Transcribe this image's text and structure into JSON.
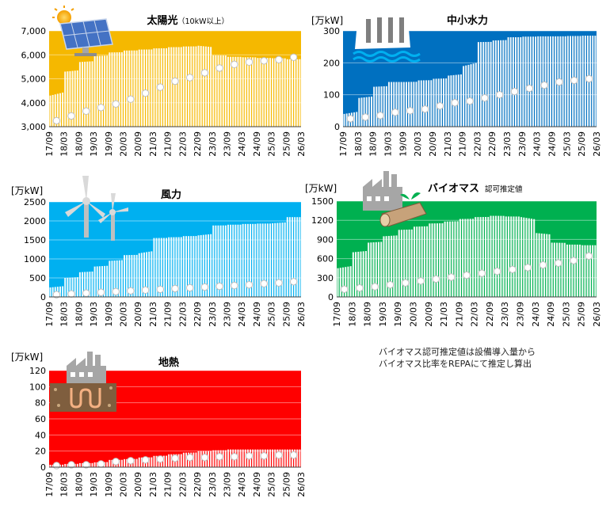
{
  "months": [
    "17/09",
    "18/03",
    "18/09",
    "19/03",
    "19/09",
    "20/03",
    "20/09",
    "21/03",
    "21/09",
    "22/03",
    "22/09",
    "23/03",
    "23/09",
    "24/03",
    "24/09",
    "25/03",
    "25/09",
    "26/03"
  ],
  "notes": [
    "バイオマス認可推定値は設備導入量から",
    "バイオマス比率をREPAにて推定し算出"
  ],
  "chart_data": [
    {
      "id": "solar",
      "type": "bar",
      "title": "太陽光",
      "title_suffix": "（10kW以上）",
      "unit": "",
      "bg_color": "#f5b800",
      "ylim": [
        3000,
        7000
      ],
      "yticks": [
        3000,
        4000,
        5000,
        6000,
        7000
      ],
      "ytick_labels": [
        "3,000",
        "4,000",
        "5,000",
        "6,000",
        "7,000"
      ],
      "x_start": 0,
      "x_end": 17,
      "series": [
        {
          "kind": "bars",
          "x": [
            0,
            1,
            2,
            3,
            4,
            5,
            6,
            7,
            8,
            9,
            10,
            11,
            12,
            13,
            14,
            15,
            16
          ],
          "values": [
            4300,
            5300,
            5700,
            5950,
            6100,
            6180,
            6220,
            6270,
            6320,
            6350,
            6380,
            5980,
            5920,
            5900,
            5870,
            5860,
            5820
          ]
        },
        {
          "kind": "dots",
          "x": [
            0,
            1,
            2,
            3,
            4,
            5,
            6,
            7,
            8,
            9,
            10,
            11,
            12,
            13,
            14,
            15,
            16
          ],
          "values": [
            3250,
            3450,
            3650,
            3800,
            3950,
            4150,
            4400,
            4650,
            4900,
            5050,
            5250,
            5450,
            5600,
            5700,
            5750,
            5800,
            5900
          ]
        }
      ]
    },
    {
      "id": "hydro",
      "type": "bar",
      "title": "中小水力",
      "title_suffix": "",
      "unit": "[万kW]",
      "bg_color": "#0070c0",
      "ylim": [
        0,
        300
      ],
      "yticks": [
        0,
        100,
        200,
        300
      ],
      "ytick_labels": [
        "0",
        "100",
        "200",
        "300"
      ],
      "x_start": 0,
      "x_end": 17,
      "series": [
        {
          "kind": "bars",
          "x": [
            0,
            1,
            2,
            3,
            4,
            5,
            6,
            7,
            8,
            9,
            10,
            11,
            12,
            13,
            14,
            15,
            16
          ],
          "values": [
            40,
            90,
            125,
            140,
            140,
            145,
            150,
            160,
            190,
            265,
            270,
            280,
            282,
            283,
            283,
            284,
            285
          ]
        },
        {
          "kind": "dots",
          "x": [
            0,
            1,
            2,
            3,
            4,
            5,
            6,
            7,
            8,
            9,
            10,
            11,
            12,
            13,
            14,
            15,
            16
          ],
          "values": [
            25,
            30,
            35,
            45,
            50,
            55,
            65,
            75,
            80,
            90,
            100,
            110,
            120,
            130,
            140,
            145,
            150
          ]
        }
      ]
    },
    {
      "id": "wind",
      "type": "bar",
      "title": "風力",
      "title_suffix": "",
      "unit": "[万kW]",
      "bg_color": "#00b0f0",
      "ylim": [
        0,
        2500
      ],
      "yticks": [
        0,
        500,
        1000,
        1500,
        2000,
        2500
      ],
      "ytick_labels": [
        "0",
        "500",
        "1000",
        "1500",
        "2000",
        "2500"
      ],
      "x_start": 0,
      "x_end": 17,
      "series": [
        {
          "kind": "bars",
          "x": [
            0,
            1,
            2,
            3,
            4,
            5,
            6,
            7,
            8,
            9,
            10,
            11,
            12,
            13,
            14,
            15,
            16
          ],
          "values": [
            250,
            500,
            650,
            800,
            950,
            1100,
            1150,
            1550,
            1570,
            1600,
            1620,
            1880,
            1900,
            1920,
            1930,
            1940,
            2100
          ]
        },
        {
          "kind": "dots",
          "x": [
            0,
            1,
            2,
            3,
            4,
            5,
            6,
            7,
            8,
            9,
            10,
            11,
            12,
            13,
            14,
            15,
            16
          ],
          "values": [
            60,
            80,
            100,
            120,
            140,
            160,
            180,
            200,
            220,
            240,
            260,
            280,
            300,
            320,
            350,
            370,
            400
          ]
        }
      ]
    },
    {
      "id": "biomass",
      "type": "bar",
      "title": "バイオマス",
      "title_suffix": "認可推定値",
      "unit": "[万kW]",
      "bg_color": "#00b050",
      "ylim": [
        0,
        1500
      ],
      "yticks": [
        0,
        300,
        600,
        900,
        1200,
        1500
      ],
      "ytick_labels": [
        "0",
        "300",
        "600",
        "900",
        "1200",
        "1500"
      ],
      "x_start": 0,
      "x_end": 17,
      "series": [
        {
          "kind": "bars",
          "x": [
            0,
            1,
            2,
            3,
            4,
            5,
            6,
            7,
            8,
            9,
            10,
            11,
            12,
            13,
            14,
            15,
            16
          ],
          "values": [
            450,
            700,
            850,
            950,
            1050,
            1100,
            1150,
            1180,
            1220,
            1250,
            1270,
            1260,
            1250,
            1000,
            850,
            820,
            810
          ]
        },
        {
          "kind": "dots",
          "x": [
            0,
            1,
            2,
            3,
            4,
            5,
            6,
            7,
            8,
            9,
            10,
            11,
            12,
            13,
            14,
            15,
            16
          ],
          "values": [
            120,
            140,
            160,
            190,
            220,
            250,
            280,
            310,
            340,
            370,
            400,
            430,
            460,
            500,
            530,
            570,
            640
          ]
        }
      ]
    },
    {
      "id": "geothermal",
      "type": "bar",
      "title": "地熱",
      "title_suffix": "",
      "unit": "[万kW]",
      "bg_color": "#ff0000",
      "ylim": [
        0,
        120
      ],
      "yticks": [
        0,
        20,
        40,
        60,
        80,
        100,
        120
      ],
      "ytick_labels": [
        "0",
        "20",
        "40",
        "60",
        "80",
        "100",
        "120"
      ],
      "x_start": 0,
      "x_end": 17,
      "series": [
        {
          "kind": "bars",
          "x": [
            0,
            1,
            2,
            3,
            4,
            5,
            6,
            7,
            8,
            9,
            10,
            11,
            12,
            13,
            14,
            15,
            16
          ],
          "values": [
            3,
            4,
            5,
            6,
            9,
            10,
            12,
            14,
            16,
            18,
            20,
            21,
            22,
            22,
            22,
            22,
            22
          ]
        },
        {
          "kind": "dots",
          "x": [
            0,
            1,
            2,
            3,
            4,
            5,
            6,
            7,
            8,
            9,
            10,
            11,
            12,
            13,
            14,
            15,
            16
          ],
          "values": [
            2,
            3,
            3,
            4,
            7,
            8,
            9,
            10,
            11,
            12,
            12,
            13,
            13,
            14,
            14,
            15,
            15
          ]
        }
      ]
    }
  ],
  "icons": [
    "solar-panel-icon",
    "dam-icon",
    "wind-turbine-icon",
    "factory-log-icon",
    "factory-geothermal-icon"
  ]
}
